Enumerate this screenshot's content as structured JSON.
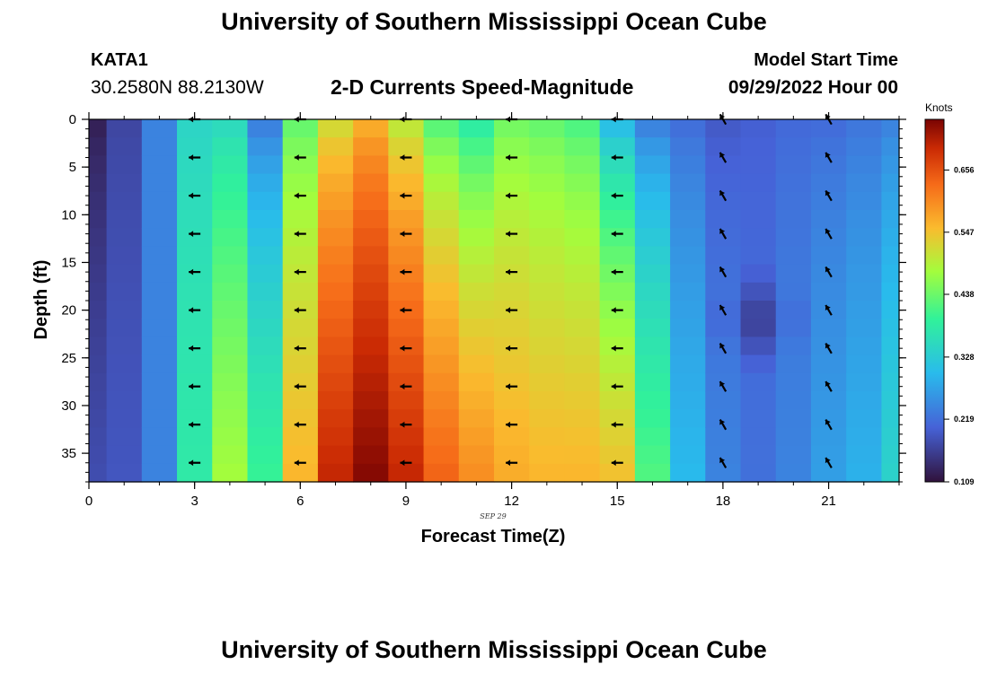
{
  "header": {
    "title": "University of Southern Mississippi Ocean Cube",
    "station_id": "KATA1",
    "station_coords": "30.2580N  88.2130W",
    "plot_title": "2-D Currents Speed-Magnitude",
    "start_label": "Model Start Time",
    "start_value": "09/29/2022 Hour 00"
  },
  "footer": {
    "title": "University of Southern Mississippi Ocean Cube"
  },
  "chart_data": {
    "type": "heatmap",
    "title": "2-D Currents Speed-Magnitude",
    "xlabel": "Forecast Time(Z)",
    "ylabel": "Depth (ft)",
    "date_label": "SEP 29",
    "xlim": [
      0,
      23
    ],
    "ylim": [
      38,
      0
    ],
    "x_ticks": [
      0,
      3,
      6,
      9,
      12,
      15,
      18,
      21
    ],
    "y_ticks": [
      0,
      5,
      10,
      15,
      20,
      25,
      30,
      35
    ],
    "x_tick_labels": [
      "0",
      "3",
      "6",
      "9",
      "12",
      "15",
      "18",
      "21"
    ],
    "y_tick_labels": [
      "0",
      "5",
      "10",
      "15",
      "20",
      "25",
      "30",
      "35"
    ],
    "colorbar": {
      "title": "Knots",
      "ticks": [
        0.109,
        0.219,
        0.328,
        0.438,
        0.547,
        0.656
      ],
      "tick_labels": [
        "0.109",
        "0.219",
        "0.328",
        "0.438",
        "0.547",
        "0.656"
      ],
      "min": 0.109,
      "max": 0.745
    },
    "hours": [
      0,
      1,
      2,
      3,
      4,
      5,
      6,
      7,
      8,
      9,
      10,
      11,
      12,
      13,
      14,
      15,
      16,
      17,
      18,
      19,
      20,
      21,
      22,
      23
    ],
    "speed_surface": [
      0.12,
      0.17,
      0.24,
      0.34,
      0.34,
      0.22,
      0.42,
      0.5,
      0.55,
      0.48,
      0.4,
      0.36,
      0.43,
      0.42,
      0.4,
      0.28,
      0.22,
      0.21,
      0.19,
      0.2,
      0.21,
      0.21,
      0.22,
      0.23
    ],
    "speed_bottom": [
      0.18,
      0.19,
      0.24,
      0.38,
      0.48,
      0.4,
      0.56,
      0.7,
      0.74,
      0.7,
      0.64,
      0.6,
      0.57,
      0.56,
      0.56,
      0.55,
      0.42,
      0.3,
      0.24,
      0.22,
      0.24,
      0.27,
      0.29,
      0.34
    ],
    "low_cell": {
      "hour": 19,
      "depth": 21,
      "value": 0.15
    },
    "vector_hours": [
      3,
      6,
      9,
      12,
      15,
      18,
      21
    ],
    "vector_depths": [
      0,
      4,
      8,
      12,
      16,
      20,
      24,
      28,
      32,
      36
    ],
    "vector_direction_deg": [
      180,
      180,
      180,
      180,
      180,
      120,
      120
    ]
  }
}
